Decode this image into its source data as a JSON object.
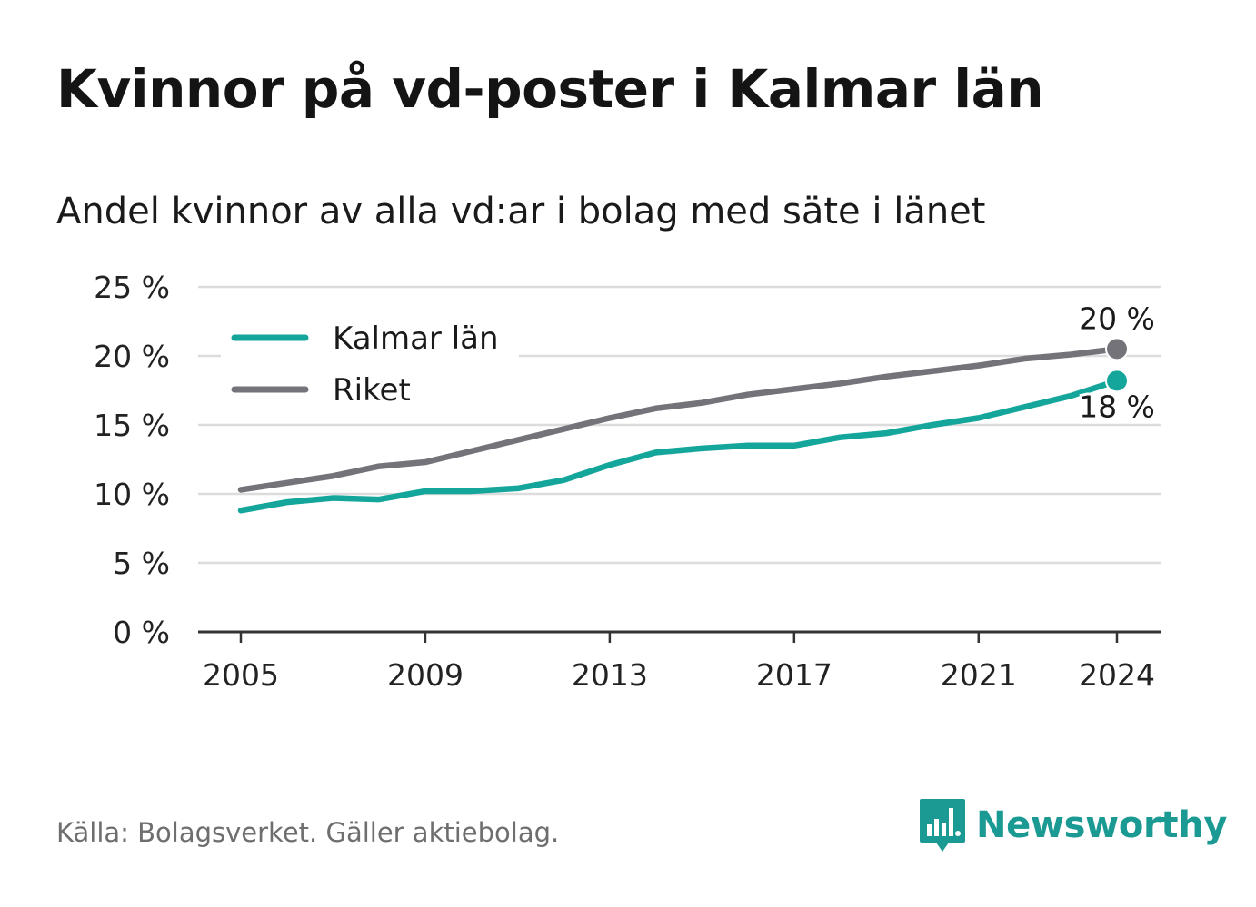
{
  "title": "Kvinnor på vd-poster i Kalmar län",
  "subtitle": "Andel kvinnor av alla vd:ar i bolag med säte i länet",
  "source": "Källa: Bolagsverket. Gäller aktiebolag.",
  "brand": {
    "name": "Newsworthy",
    "icon": "newsworthy-logo-icon",
    "color": "#1a9a92"
  },
  "chart_data": {
    "type": "line",
    "title": "Kvinnor på vd-poster i Kalmar län",
    "subtitle": "Andel kvinnor av alla vd:ar i bolag med säte i länet",
    "xlabel": "",
    "ylabel": "",
    "x": [
      2005,
      2006,
      2007,
      2008,
      2009,
      2010,
      2011,
      2012,
      2013,
      2014,
      2015,
      2016,
      2017,
      2018,
      2019,
      2020,
      2021,
      2022,
      2023,
      2024
    ],
    "x_ticks": [
      "2005",
      "2009",
      "2013",
      "2017",
      "2021",
      "2024"
    ],
    "y_ticks": [
      "0 %",
      "5 %",
      "10 %",
      "15 %",
      "20 %",
      "25 %"
    ],
    "ylim": [
      0,
      25
    ],
    "grid": true,
    "legend_position": "top-left",
    "series": [
      {
        "name": "Kalmar län",
        "color": "#14a59b",
        "values": [
          8.8,
          9.4,
          9.7,
          9.6,
          10.2,
          10.2,
          10.4,
          11.0,
          12.1,
          13.0,
          13.3,
          13.5,
          13.5,
          14.1,
          14.4,
          15.0,
          15.5,
          16.3,
          17.1,
          18.2
        ],
        "end_label": "18 %"
      },
      {
        "name": "Riket",
        "color": "#747379",
        "values": [
          10.3,
          10.8,
          11.3,
          12.0,
          12.3,
          13.1,
          13.9,
          14.7,
          15.5,
          16.2,
          16.6,
          17.2,
          17.6,
          18.0,
          18.5,
          18.9,
          19.3,
          19.8,
          20.1,
          20.5
        ],
        "end_label": "20 %"
      }
    ]
  }
}
